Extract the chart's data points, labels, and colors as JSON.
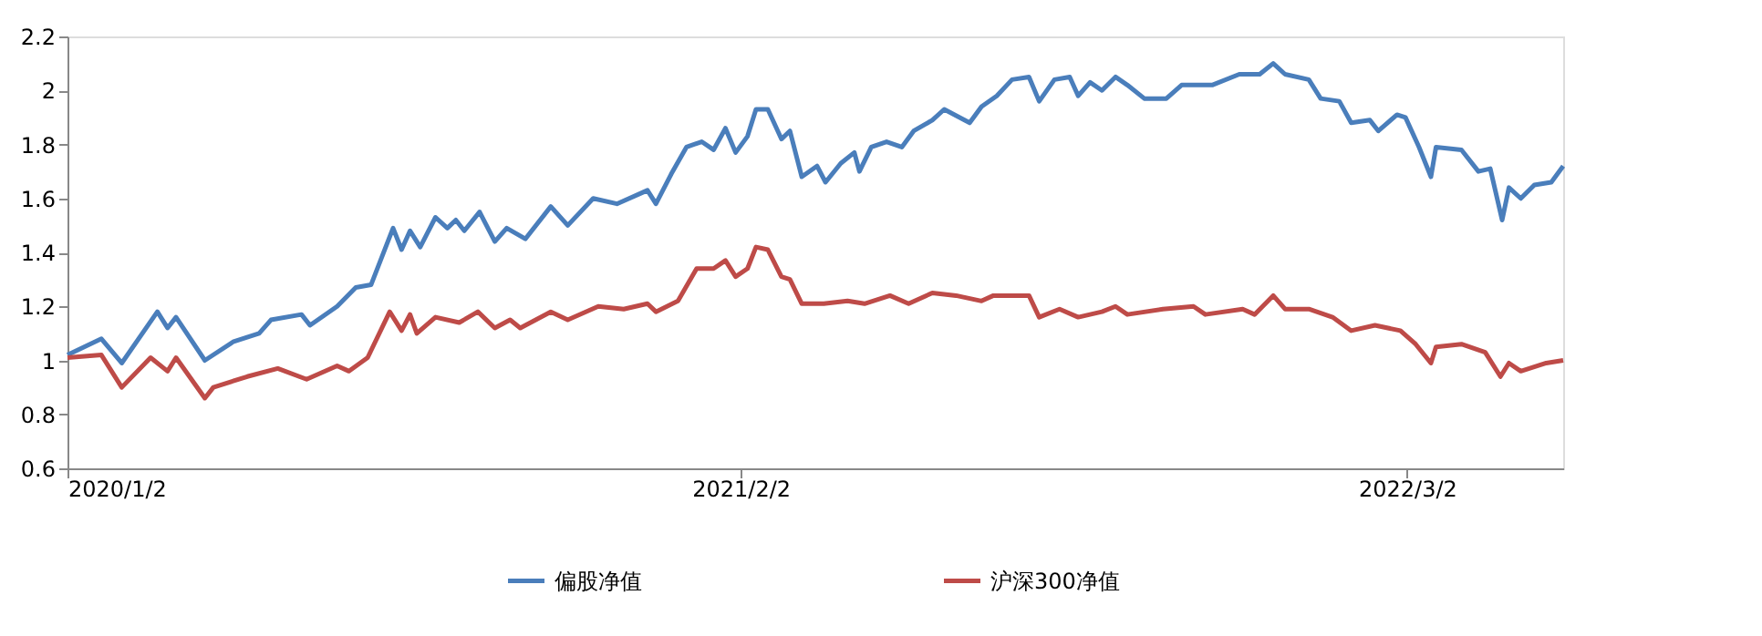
{
  "chart_data": {
    "type": "line",
    "xlim": [
      "2020-01-02",
      "2022-06-02"
    ],
    "xticks": [
      {
        "value": "2020-01-02",
        "label": "2020/1/2"
      },
      {
        "value": "2021-02-02",
        "label": "2021/2/2"
      },
      {
        "value": "2022-03-02",
        "label": "2022/3/2"
      }
    ],
    "ylim": [
      0.6,
      2.2
    ],
    "yticks": [
      0.6,
      0.8,
      1,
      1.2,
      1.4,
      1.6,
      1.8,
      2,
      2.2
    ],
    "legend": "bottom",
    "series": [
      {
        "name": "偏股净值",
        "color": "#4a7ebb",
        "x": [
          "2020-01-02",
          "2020-01-22",
          "2020-02-03",
          "2020-02-24",
          "2020-03-01",
          "2020-03-06",
          "2020-03-23",
          "2020-04-09",
          "2020-04-24",
          "2020-05-01",
          "2020-05-19",
          "2020-05-24",
          "2020-06-09",
          "2020-06-20",
          "2020-06-29",
          "2020-07-12",
          "2020-07-17",
          "2020-07-22",
          "2020-07-28",
          "2020-08-06",
          "2020-08-13",
          "2020-08-18",
          "2020-08-23",
          "2020-09-01",
          "2020-09-10",
          "2020-09-17",
          "2020-09-28",
          "2020-10-13",
          "2020-10-23",
          "2020-11-07",
          "2020-11-21",
          "2020-12-09",
          "2020-12-14",
          "2020-12-23",
          "2021-01-01",
          "2021-01-10",
          "2021-01-17",
          "2021-01-24",
          "2021-01-30",
          "2021-02-06",
          "2021-02-11",
          "2021-02-18",
          "2021-02-26",
          "2021-03-03",
          "2021-03-10",
          "2021-03-19",
          "2021-03-24",
          "2021-04-02",
          "2021-04-10",
          "2021-04-13",
          "2021-04-20",
          "2021-04-29",
          "2021-05-08",
          "2021-05-15",
          "2021-05-26",
          "2021-06-02",
          "2021-06-17",
          "2021-06-24",
          "2021-07-03",
          "2021-07-12",
          "2021-07-22",
          "2021-07-28",
          "2021-08-06",
          "2021-08-15",
          "2021-08-20",
          "2021-08-27",
          "2021-09-03",
          "2021-09-11",
          "2021-09-18",
          "2021-09-28",
          "2021-10-11",
          "2021-10-20",
          "2021-11-07",
          "2021-11-23",
          "2021-12-05",
          "2021-12-13",
          "2021-12-20",
          "2022-01-03",
          "2022-01-10",
          "2022-01-21",
          "2022-01-28",
          "2022-02-08",
          "2022-02-13",
          "2022-02-24",
          "2022-03-01",
          "2022-03-09",
          "2022-03-16",
          "2022-03-19",
          "2022-04-03",
          "2022-04-13",
          "2022-04-20",
          "2022-04-27",
          "2022-05-01",
          "2022-05-08",
          "2022-05-16",
          "2022-05-26",
          "2022-06-02"
        ],
        "values": [
          1.02,
          1.08,
          0.99,
          1.18,
          1.12,
          1.16,
          1.0,
          1.07,
          1.1,
          1.15,
          1.17,
          1.13,
          1.2,
          1.27,
          1.28,
          1.49,
          1.41,
          1.48,
          1.42,
          1.53,
          1.49,
          1.52,
          1.48,
          1.55,
          1.44,
          1.49,
          1.45,
          1.57,
          1.5,
          1.6,
          1.58,
          1.63,
          1.58,
          1.69,
          1.79,
          1.81,
          1.78,
          1.86,
          1.77,
          1.83,
          1.93,
          1.93,
          1.82,
          1.85,
          1.68,
          1.72,
          1.66,
          1.73,
          1.77,
          1.7,
          1.79,
          1.81,
          1.79,
          1.85,
          1.89,
          1.93,
          1.88,
          1.94,
          1.98,
          2.04,
          2.05,
          1.96,
          2.04,
          2.05,
          1.98,
          2.03,
          2.0,
          2.05,
          2.02,
          1.97,
          1.97,
          2.02,
          2.02,
          2.06,
          2.06,
          2.1,
          2.06,
          2.04,
          1.97,
          1.96,
          1.88,
          1.89,
          1.85,
          1.91,
          1.9,
          1.79,
          1.68,
          1.79,
          1.78,
          1.7,
          1.71,
          1.52,
          1.64,
          1.6,
          1.65,
          1.66,
          1.72
        ]
      },
      {
        "name": "沪深300净值",
        "color": "#be4b48",
        "x": [
          "2020-01-02",
          "2020-01-22",
          "2020-02-03",
          "2020-02-20",
          "2020-03-01",
          "2020-03-06",
          "2020-03-23",
          "2020-03-28",
          "2020-04-17",
          "2020-05-05",
          "2020-05-22",
          "2020-06-09",
          "2020-06-16",
          "2020-06-27",
          "2020-07-10",
          "2020-07-17",
          "2020-07-22",
          "2020-07-26",
          "2020-08-06",
          "2020-08-20",
          "2020-08-31",
          "2020-09-10",
          "2020-09-19",
          "2020-09-25",
          "2020-10-13",
          "2020-10-23",
          "2020-11-10",
          "2020-11-25",
          "2020-12-09",
          "2020-12-14",
          "2020-12-27",
          "2021-01-07",
          "2021-01-17",
          "2021-01-24",
          "2021-01-30",
          "2021-02-06",
          "2021-02-11",
          "2021-02-18",
          "2021-02-26",
          "2021-03-03",
          "2021-03-10",
          "2021-03-23",
          "2021-04-06",
          "2021-04-16",
          "2021-05-01",
          "2021-05-12",
          "2021-05-26",
          "2021-06-09",
          "2021-06-24",
          "2021-07-01",
          "2021-07-22",
          "2021-07-28",
          "2021-08-09",
          "2021-08-20",
          "2021-09-03",
          "2021-09-11",
          "2021-09-18",
          "2021-10-09",
          "2021-10-27",
          "2021-11-03",
          "2021-11-25",
          "2021-12-02",
          "2021-12-13",
          "2021-12-20",
          "2022-01-03",
          "2022-01-17",
          "2022-01-28",
          "2022-02-11",
          "2022-02-26",
          "2022-03-07",
          "2022-03-16",
          "2022-03-19",
          "2022-04-03",
          "2022-04-17",
          "2022-04-26",
          "2022-05-01",
          "2022-05-08",
          "2022-05-23",
          "2022-06-02"
        ],
        "values": [
          1.01,
          1.02,
          0.9,
          1.01,
          0.96,
          1.01,
          0.86,
          0.9,
          0.94,
          0.97,
          0.93,
          0.98,
          0.96,
          1.01,
          1.18,
          1.11,
          1.17,
          1.1,
          1.16,
          1.14,
          1.18,
          1.12,
          1.15,
          1.12,
          1.18,
          1.15,
          1.2,
          1.19,
          1.21,
          1.18,
          1.22,
          1.34,
          1.34,
          1.37,
          1.31,
          1.34,
          1.42,
          1.41,
          1.31,
          1.3,
          1.21,
          1.21,
          1.22,
          1.21,
          1.24,
          1.21,
          1.25,
          1.24,
          1.22,
          1.24,
          1.24,
          1.16,
          1.19,
          1.16,
          1.18,
          1.2,
          1.17,
          1.19,
          1.2,
          1.17,
          1.19,
          1.17,
          1.24,
          1.19,
          1.19,
          1.16,
          1.11,
          1.13,
          1.11,
          1.06,
          0.99,
          1.05,
          1.06,
          1.03,
          0.94,
          0.99,
          0.96,
          0.99,
          1.0
        ]
      }
    ]
  }
}
